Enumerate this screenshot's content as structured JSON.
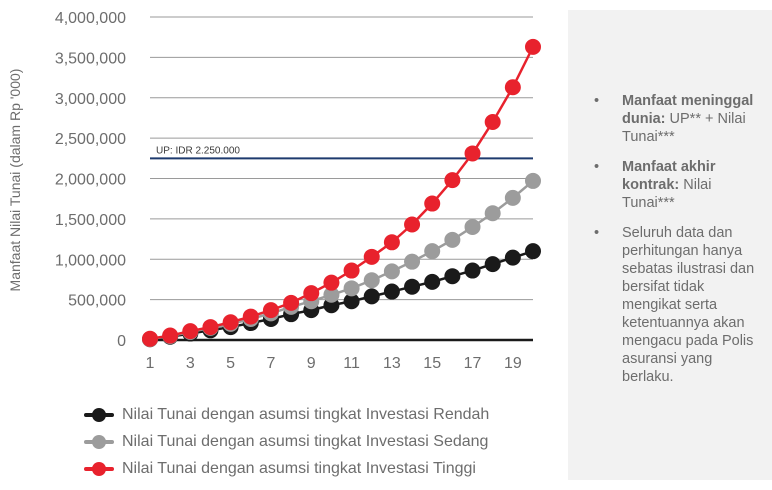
{
  "chart_data": {
    "type": "line",
    "title": "",
    "xlabel": "",
    "ylabel": "Manfaat Nilai Tunai (dalam Rp '000)",
    "x": [
      1,
      2,
      3,
      4,
      5,
      6,
      7,
      8,
      9,
      10,
      11,
      12,
      13,
      14,
      15,
      16,
      17,
      18,
      19,
      20
    ],
    "xticks": [
      1,
      3,
      5,
      7,
      9,
      11,
      13,
      15,
      17,
      19
    ],
    "xlim": [
      1,
      20
    ],
    "ylim": [
      0,
      4000000
    ],
    "yticks": [
      0,
      500000,
      1000000,
      1500000,
      2000000,
      2500000,
      3000000,
      3500000,
      4000000
    ],
    "ytick_labels": [
      "0",
      "500,000",
      "1,000,000",
      "1,500,000",
      "2,000,000",
      "2,500,000",
      "3,000,000",
      "3,500,000",
      "4,000,000"
    ],
    "grid": true,
    "legend_position": "bottom",
    "reference_line": {
      "value": 2250000,
      "label": "UP: IDR 2.250.000",
      "color": "#1e3a6e"
    },
    "series": [
      {
        "name": "Nilai Tunai dengan asumsi tingkat Investasi Rendah",
        "color": "#1a1a1a",
        "values": [
          10000,
          40000,
          80000,
          120000,
          160000,
          210000,
          260000,
          320000,
          370000,
          430000,
          480000,
          540000,
          600000,
          660000,
          720000,
          790000,
          860000,
          940000,
          1020000,
          1100000
        ]
      },
      {
        "name": "Nilai Tunai dengan asumsi tingkat Investasi Sedang",
        "color": "#9c9c9c",
        "values": [
          12000,
          48000,
          100000,
          150000,
          200000,
          260000,
          330000,
          410000,
          480000,
          560000,
          640000,
          740000,
          850000,
          970000,
          1100000,
          1240000,
          1400000,
          1570000,
          1760000,
          1970000
        ]
      },
      {
        "name": "Nilai Tunai dengan asumsi tingkat Investasi Tinggi",
        "color": "#e8222d",
        "values": [
          15000,
          55000,
          110000,
          160000,
          220000,
          290000,
          370000,
          460000,
          580000,
          710000,
          860000,
          1030000,
          1210000,
          1430000,
          1690000,
          1980000,
          2310000,
          2700000,
          3130000,
          3630000
        ]
      }
    ]
  },
  "info_panel": {
    "items": [
      {
        "bold": "Manfaat meninggal dunia:",
        "text": " UP** + Nilai Tunai***"
      },
      {
        "bold": "Manfaat akhir kontrak:",
        "text": " Nilai Tunai***"
      },
      {
        "bold": "",
        "text": "Seluruh data dan perhitungan hanya sebatas ilustrasi dan bersifat tidak mengikat serta ketentuannya akan mengacu pada Polis asuransi yang berlaku."
      }
    ]
  }
}
